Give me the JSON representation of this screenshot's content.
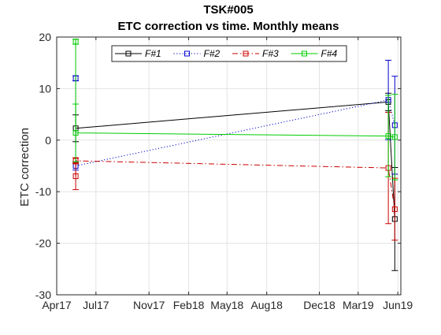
{
  "chart_data": {
    "type": "line",
    "title": "TSK#005",
    "subtitle": "ETC correction vs time. Monthly means",
    "xlabel": "",
    "ylabel": "ETC correction",
    "x_axis_type": "date",
    "xlim": [
      "2017-04-01",
      "2019-06-08"
    ],
    "ylim": [
      -30,
      20
    ],
    "x_ticks": [
      {
        "date": "2017-04-01",
        "label": "Apr17"
      },
      {
        "date": "2017-07-01",
        "label": "Jul17"
      },
      {
        "date": "2017-11-01",
        "label": "Nov17"
      },
      {
        "date": "2018-02-01",
        "label": "Feb18"
      },
      {
        "date": "2018-05-01",
        "label": "May18"
      },
      {
        "date": "2018-08-01",
        "label": "Aug18"
      },
      {
        "date": "2018-12-01",
        "label": "Dec18"
      },
      {
        "date": "2019-03-01",
        "label": "Mar19"
      },
      {
        "date": "2019-06-01",
        "label": "Jun19"
      }
    ],
    "y_ticks": [
      20,
      10,
      0,
      -10,
      -20,
      -30
    ],
    "grid": true,
    "legend_position": "top",
    "series": [
      {
        "name": "F#1",
        "color": "#000000",
        "dash": "solid",
        "points": [
          {
            "x": "2017-05-15",
            "y": 2.3,
            "err": 2.6
          },
          {
            "x": "2019-05-10",
            "y": 7.4,
            "err": 1.7
          },
          {
            "x": "2019-05-25",
            "y": -15.3,
            "err": 10.0
          }
        ]
      },
      {
        "name": "F#2",
        "color": "#0000cc",
        "dash": "dotted",
        "points": [
          {
            "x": "2017-05-15",
            "y": 12.0,
            "err": 0.5
          },
          {
            "x": "2017-05-15",
            "y": -5.0,
            "err": 0.8
          },
          {
            "x": "2019-05-10",
            "y": 7.8,
            "err": 7.7
          },
          {
            "x": "2019-05-25",
            "y": 2.9,
            "err": 9.5
          }
        ]
      },
      {
        "name": "F#3",
        "color": "#cc0000",
        "dash": "dashdot",
        "points": [
          {
            "x": "2017-05-15",
            "y": -7.0,
            "err": 2.6
          },
          {
            "x": "2017-05-15",
            "y": -4.0,
            "err": 0.6
          },
          {
            "x": "2019-05-10",
            "y": -5.4,
            "err": 10.8
          },
          {
            "x": "2019-05-25",
            "y": -13.4,
            "err": 6.0
          }
        ]
      },
      {
        "name": "F#4",
        "color": "#00cc00",
        "dash": "solid",
        "points": [
          {
            "x": "2017-05-15",
            "y": 19.1,
            "err": 0.5
          },
          {
            "x": "2017-05-15",
            "y": 1.4,
            "err": 5.6
          },
          {
            "x": "2019-05-10",
            "y": 0.8,
            "err": 7.9
          },
          {
            "x": "2019-05-25",
            "y": 0.6,
            "err": 8.3
          }
        ]
      }
    ]
  }
}
